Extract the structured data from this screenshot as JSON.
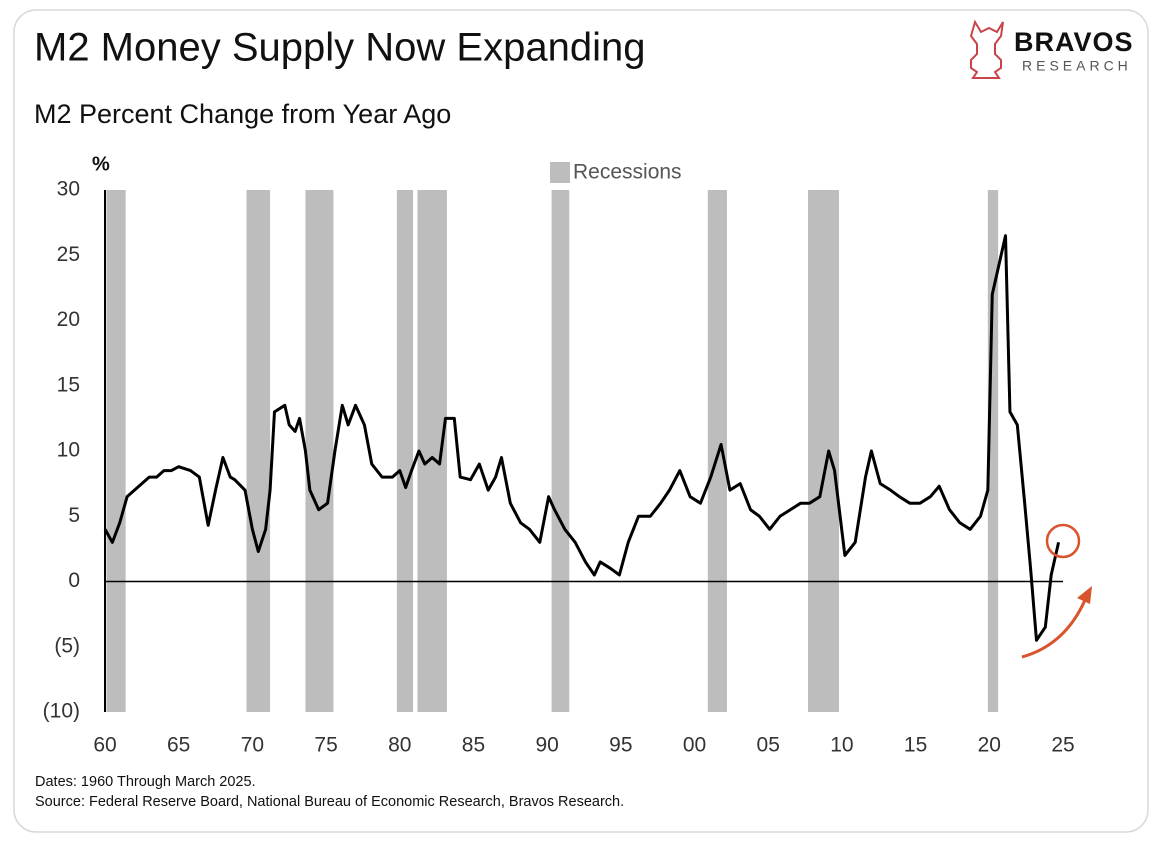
{
  "logo": {
    "name": "BRAVOS",
    "tagline": "RESEARCH"
  },
  "chart_data": {
    "type": "line",
    "title": "M2 Money Supply Now Expanding",
    "subtitle": "M2 Percent Change from Year Ago",
    "y_label": "%",
    "notes": [
      "Dates: 1960 Through March 2025.",
      "Source: Federal Reserve Board, National Bureau of Economic Research, Bravos Research."
    ],
    "xlim": [
      1960,
      2025
    ],
    "xticks": [
      {
        "value": 1960,
        "label": "60"
      },
      {
        "value": 1965,
        "label": "65"
      },
      {
        "value": 1970,
        "label": "70"
      },
      {
        "value": 1975,
        "label": "75"
      },
      {
        "value": 1980,
        "label": "80"
      },
      {
        "value": 1985,
        "label": "85"
      },
      {
        "value": 1990,
        "label": "90"
      },
      {
        "value": 1995,
        "label": "95"
      },
      {
        "value": 2000,
        "label": "00"
      },
      {
        "value": 2005,
        "label": "05"
      },
      {
        "value": 2010,
        "label": "10"
      },
      {
        "value": 2015,
        "label": "15"
      },
      {
        "value": 2020,
        "label": "20"
      },
      {
        "value": 2025,
        "label": "25"
      }
    ],
    "ylim": [
      -10,
      30
    ],
    "yticks": [
      {
        "value": -10,
        "label": "(10)"
      },
      {
        "value": -5,
        "label": "(5)"
      },
      0,
      5,
      10,
      15,
      20,
      25,
      30
    ],
    "grid": false,
    "recessions": {
      "name": "Recessions",
      "color": "#bdbdbd",
      "periods": [
        [
          1960.1,
          1961.4
        ],
        [
          1969.6,
          1971.2
        ],
        [
          1973.6,
          1975.5
        ],
        [
          1979.8,
          1980.9
        ],
        [
          1981.2,
          1983.2
        ],
        [
          1990.3,
          1991.5
        ],
        [
          2000.9,
          2002.2
        ],
        [
          2007.7,
          2009.8
        ],
        [
          2019.9,
          2020.6
        ]
      ]
    },
    "series": [
      {
        "name": "M2",
        "color": "#000000",
        "x": [
          1960.0,
          1960.5,
          1961.0,
          1961.5,
          1962.0,
          1962.5,
          1963.0,
          1963.5,
          1964.0,
          1964.5,
          1965.0,
          1965.8,
          1966.4,
          1967.0,
          1967.5,
          1968.0,
          1968.5,
          1968.8,
          1969.5,
          1970.0,
          1970.4,
          1970.9,
          1971.2,
          1971.5,
          1972.2,
          1972.5,
          1972.9,
          1973.2,
          1973.6,
          1973.9,
          1974.5,
          1975.1,
          1975.6,
          1976.1,
          1976.5,
          1977.0,
          1977.6,
          1978.1,
          1978.8,
          1979.5,
          1980.0,
          1980.4,
          1980.8,
          1981.3,
          1981.7,
          1982.2,
          1982.7,
          1983.1,
          1983.7,
          1984.1,
          1984.8,
          1985.4,
          1986.0,
          1986.5,
          1986.9,
          1987.5,
          1988.2,
          1988.8,
          1989.5,
          1990.1,
          1990.5,
          1991.2,
          1991.9,
          1992.6,
          1993.2,
          1993.6,
          1994.3,
          1994.9,
          1995.5,
          1996.2,
          1997.0,
          1997.7,
          1998.3,
          1999.0,
          1999.7,
          2000.4,
          2001.1,
          2001.8,
          2002.4,
          2003.1,
          2003.8,
          2004.4,
          2005.1,
          2005.8,
          2006.5,
          2007.2,
          2007.8,
          2008.5,
          2009.1,
          2009.5,
          2010.2,
          2010.9,
          2011.6,
          2012.0,
          2012.6,
          2013.3,
          2013.9,
          2014.6,
          2015.3,
          2016.0,
          2016.6,
          2017.3,
          2018.0,
          2018.7,
          2019.4,
          2019.9,
          2020.2,
          2020.6,
          2021.1,
          2021.4,
          2021.9,
          2022.4,
          2022.8,
          2023.2,
          2023.8,
          2024.2,
          2024.7
        ],
        "values": [
          4,
          3,
          4.5,
          6.5,
          7,
          7.5,
          8,
          8,
          8.5,
          8.5,
          8.8,
          8.5,
          8,
          4.3,
          7,
          9.5,
          8,
          7.8,
          7,
          4,
          2.3,
          4,
          7,
          13,
          13.5,
          12,
          11.5,
          12.5,
          10,
          7,
          5.5,
          6,
          10,
          13.5,
          12,
          13.5,
          12,
          9,
          8,
          8,
          8.5,
          7.2,
          8.5,
          10,
          9,
          9.5,
          9,
          12.5,
          12.5,
          8,
          7.8,
          9,
          7,
          8,
          9.5,
          6,
          4.5,
          4,
          3,
          6.5,
          5.5,
          4,
          3,
          1.5,
          0.5,
          1.5,
          1,
          0.5,
          3,
          5,
          5,
          6,
          7,
          8.5,
          6.5,
          6,
          8,
          10.5,
          7,
          7.5,
          5.5,
          5,
          4,
          5,
          5.5,
          6,
          6,
          6.5,
          10,
          8.5,
          2,
          3,
          8,
          10,
          7.5,
          7,
          6.5,
          6,
          6,
          6.5,
          7.3,
          5.5,
          4.5,
          4,
          5,
          7,
          22,
          24,
          26.5,
          13,
          12,
          6,
          1,
          -4.5,
          -3.5,
          0.5,
          3
        ]
      }
    ]
  }
}
